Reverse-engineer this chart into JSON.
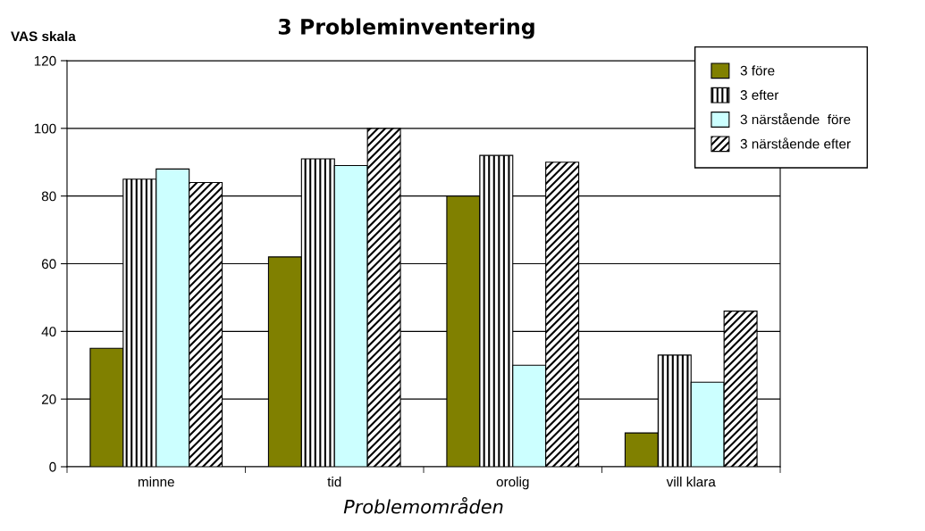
{
  "chart_data": {
    "type": "bar",
    "title": "3 Probleminventering",
    "ylabel": "VAS skala",
    "xlabel": "Problemområden",
    "categories": [
      "minne",
      "tid",
      "orolig",
      "vill klara"
    ],
    "series": [
      {
        "name": "3 före",
        "color": "#808000",
        "values": [
          35,
          62,
          80,
          10
        ]
      },
      {
        "name": "3 efter",
        "color": "#000000",
        "values": [
          85,
          91,
          92,
          33
        ]
      },
      {
        "name": "3 närstående  före",
        "color": "#ccffff",
        "values": [
          88,
          89,
          30,
          25
        ]
      },
      {
        "name": "3 närstående efter",
        "color": "#000000",
        "values": [
          84,
          100,
          90,
          46
        ]
      }
    ],
    "ylim": [
      0,
      120
    ],
    "yticks": [
      0,
      20,
      40,
      60,
      80,
      100,
      120
    ],
    "grid": "y",
    "legend": "top right"
  }
}
